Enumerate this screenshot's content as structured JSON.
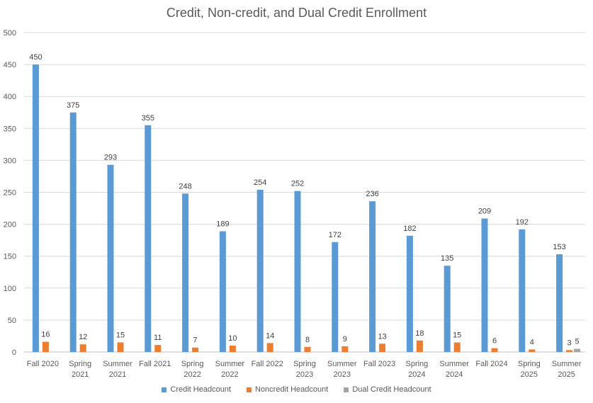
{
  "chart_data": {
    "type": "bar",
    "title": "Credit, Non-credit, and Dual Credit Enrollment",
    "xlabel": "",
    "ylabel": "",
    "ylim": [
      0,
      500
    ],
    "yticks": [
      0,
      50,
      100,
      150,
      200,
      250,
      300,
      350,
      400,
      450,
      500
    ],
    "grid": true,
    "legend_position": "bottom",
    "categories": [
      [
        "Fall 2020"
      ],
      [
        "Spring",
        "2021"
      ],
      [
        "Summer",
        "2021"
      ],
      [
        "Fall 2021"
      ],
      [
        "Spring",
        "2022"
      ],
      [
        "Summer",
        "2022"
      ],
      [
        "Fall 2022"
      ],
      [
        "Spring",
        "2023"
      ],
      [
        "Summer",
        "2023"
      ],
      [
        "Fall 2023"
      ],
      [
        "Spring",
        "2024"
      ],
      [
        "Summer",
        "2024"
      ],
      [
        "Fall 2024"
      ],
      [
        "Spring",
        "2025"
      ],
      [
        "Summer",
        "2025"
      ]
    ],
    "series": [
      {
        "name": "Credit Headcount",
        "color": "#5B9BD5",
        "values": [
          450,
          375,
          293,
          355,
          248,
          189,
          254,
          252,
          172,
          236,
          182,
          135,
          209,
          192,
          153
        ]
      },
      {
        "name": "Noncredit Headcount",
        "color": "#ED7D31",
        "values": [
          16,
          12,
          15,
          11,
          7,
          10,
          14,
          8,
          9,
          13,
          18,
          15,
          6,
          4,
          3
        ]
      },
      {
        "name": "Dual Credit Headcount",
        "color": "#A5A5A5",
        "values": [
          null,
          null,
          null,
          null,
          null,
          null,
          null,
          null,
          null,
          null,
          null,
          null,
          null,
          null,
          5
        ]
      }
    ]
  }
}
